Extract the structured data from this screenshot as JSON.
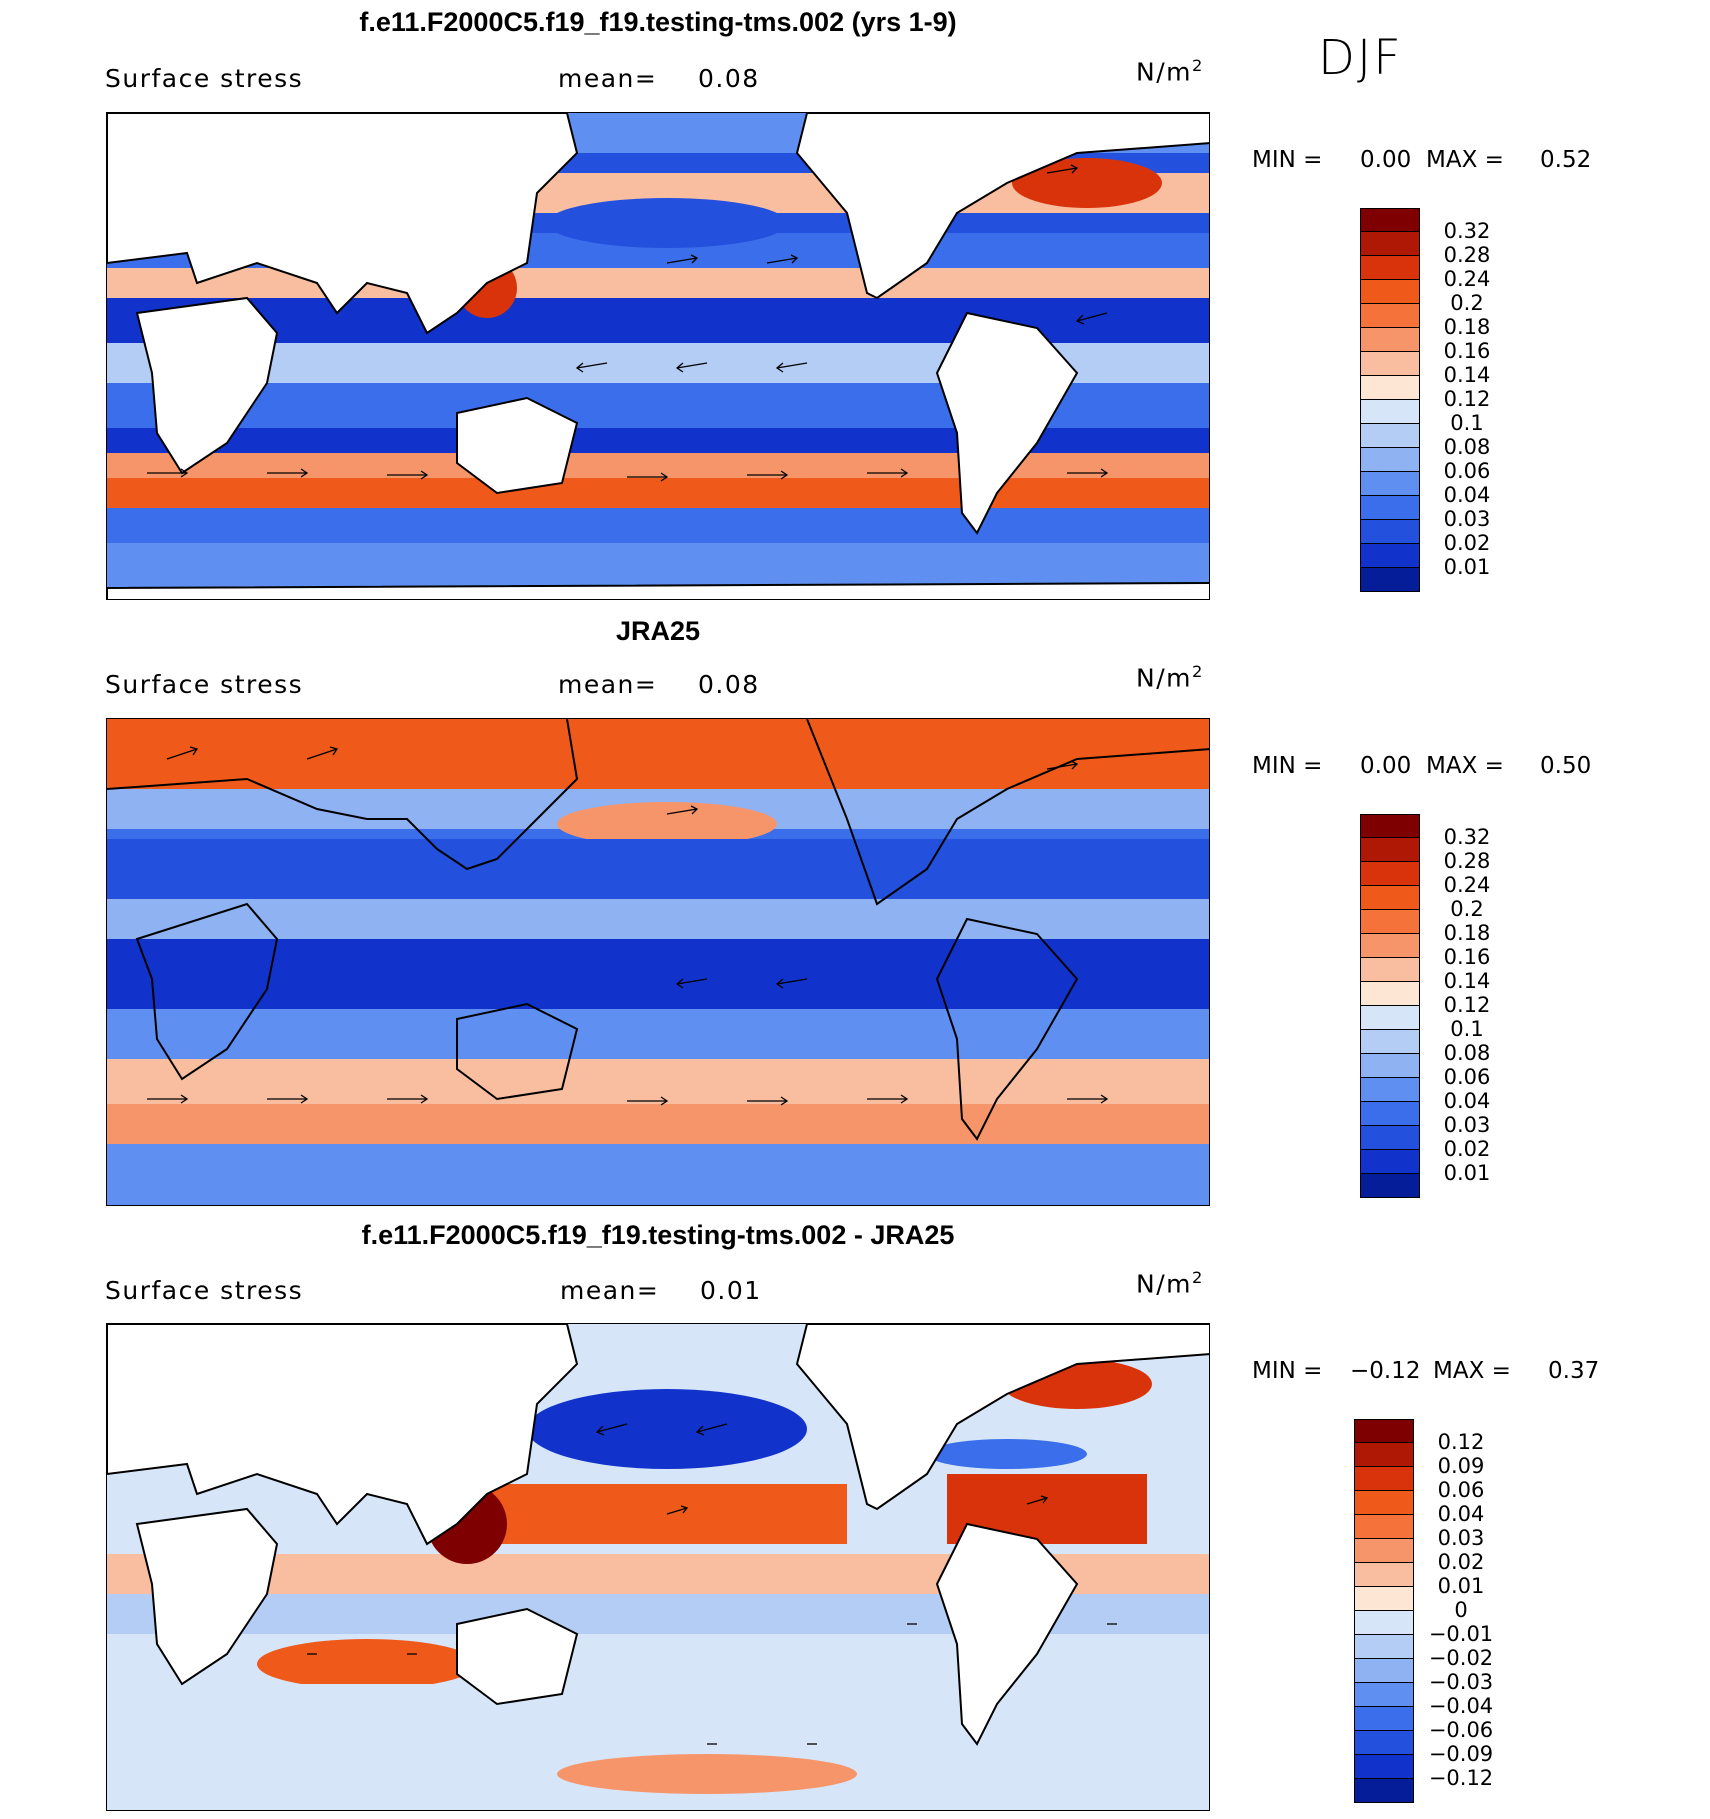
{
  "season": "DJF",
  "panels": [
    {
      "id": "model",
      "title": "f.e11.F2000C5.f19_f19.testing-tms.002 (yrs 1-9)",
      "variable": "Surface stress",
      "mean_label": "mean=",
      "mean_value": "0.08",
      "units": "N/m",
      "units_exp": "2",
      "min_label": "MIN =",
      "min_value": "0.00",
      "max_label": "MAX =",
      "max_value": "0.52",
      "colorbar": {
        "labels": [
          "0.32",
          "0.28",
          "0.24",
          "0.2",
          "0.18",
          "0.16",
          "0.14",
          "0.12",
          "0.1",
          "0.08",
          "0.06",
          "0.04",
          "0.03",
          "0.02",
          "0.01"
        ],
        "colors": [
          "#7f0000",
          "#b01806",
          "#d8330a",
          "#ef5a1a",
          "#f5733a",
          "#f7956a",
          "#f9bd9f",
          "#fde6d3",
          "#d6e6f8",
          "#b3cdf4",
          "#8eb2f2",
          "#5f8ff0",
          "#3b6eea",
          "#2450de",
          "#1133cc",
          "#061d9a"
        ]
      }
    },
    {
      "id": "obs",
      "title": "JRA25",
      "variable": "Surface stress",
      "mean_label": "mean=",
      "mean_value": "0.08",
      "units": "N/m",
      "units_exp": "2",
      "min_label": "MIN =",
      "min_value": "0.00",
      "max_label": "MAX =",
      "max_value": "0.50",
      "colorbar": {
        "labels": [
          "0.32",
          "0.28",
          "0.24",
          "0.2",
          "0.18",
          "0.16",
          "0.14",
          "0.12",
          "0.1",
          "0.08",
          "0.06",
          "0.04",
          "0.03",
          "0.02",
          "0.01"
        ],
        "colors": [
          "#7f0000",
          "#b01806",
          "#d8330a",
          "#ef5a1a",
          "#f5733a",
          "#f7956a",
          "#f9bd9f",
          "#fde6d3",
          "#d6e6f8",
          "#b3cdf4",
          "#8eb2f2",
          "#5f8ff0",
          "#3b6eea",
          "#2450de",
          "#1133cc",
          "#061d9a"
        ]
      }
    },
    {
      "id": "diff",
      "title": "f.e11.F2000C5.f19_f19.testing-tms.002 - JRA25",
      "variable": "Surface stress",
      "mean_label": "mean=",
      "mean_value": "0.01",
      "units": "N/m",
      "units_exp": "2",
      "min_label": "MIN =",
      "min_value": "−0.12",
      "max_label": "MAX =",
      "max_value": "0.37",
      "colorbar": {
        "labels": [
          "0.12",
          "0.09",
          "0.06",
          "0.04",
          "0.03",
          "0.02",
          "0.01",
          "0",
          "−0.01",
          "−0.02",
          "−0.03",
          "−0.04",
          "−0.06",
          "−0.09",
          "−0.12"
        ],
        "colors": [
          "#7f0000",
          "#b01806",
          "#d8330a",
          "#ef5a1a",
          "#f5733a",
          "#f7956a",
          "#f9bd9f",
          "#fde6d3",
          "#d6e6f8",
          "#b3cdf4",
          "#8eb2f2",
          "#5f8ff0",
          "#3b6eea",
          "#2450de",
          "#1133cc",
          "#061d9a"
        ]
      }
    }
  ]
}
